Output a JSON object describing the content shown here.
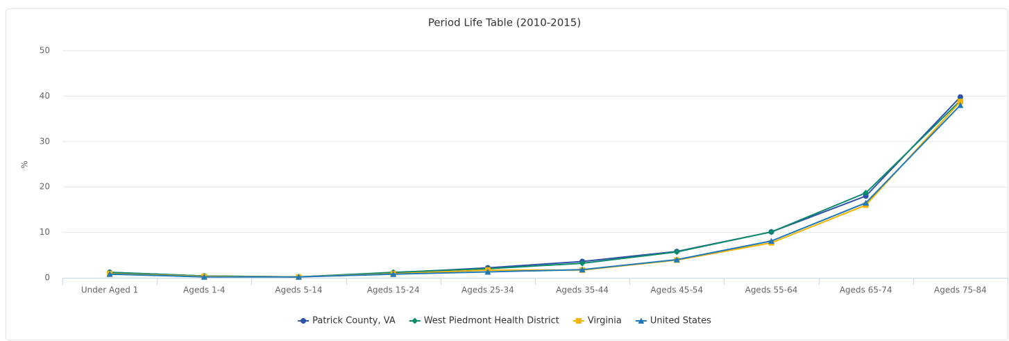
{
  "chart_data": {
    "type": "line",
    "title": "Period Life Table (2010-2015)",
    "y_label": "%",
    "categories": [
      "Under Aged 1",
      "Ageds 1-4",
      "Ageds 5-14",
      "Ageds 15-24",
      "Ageds 25-34",
      "Ageds 35-44",
      "Ageds 45-54",
      "Ageds 55-64",
      "Ageds 65-74",
      "Ageds 75-84"
    ],
    "series": [
      {
        "name": "Patrick County, VA",
        "color": "#2f51a9",
        "marker": "circle",
        "values": [
          1.2,
          0.4,
          0.2,
          1.1,
          2.2,
          3.6,
          5.8,
          10.1,
          18.0,
          39.8
        ]
      },
      {
        "name": "West Piedmont Health District",
        "color": "#0b8a6b",
        "marker": "diamond",
        "values": [
          1.2,
          0.4,
          0.2,
          1.2,
          2.0,
          3.2,
          5.7,
          10.1,
          18.7,
          39.0
        ]
      },
      {
        "name": "Virginia",
        "color": "#f5b400",
        "marker": "square",
        "values": [
          0.9,
          0.3,
          0.2,
          0.9,
          1.7,
          1.7,
          3.9,
          7.7,
          16.0,
          38.8
        ]
      },
      {
        "name": "United States",
        "color": "#1f78b8",
        "marker": "triangle",
        "values": [
          0.8,
          0.2,
          0.2,
          0.8,
          1.3,
          1.8,
          4.0,
          8.1,
          16.5,
          38.0
        ]
      }
    ],
    "ylim": [
      0,
      50
    ],
    "yticks": [
      0,
      10,
      20,
      30,
      40,
      50
    ],
    "grid": true,
    "legend": "bottom"
  }
}
